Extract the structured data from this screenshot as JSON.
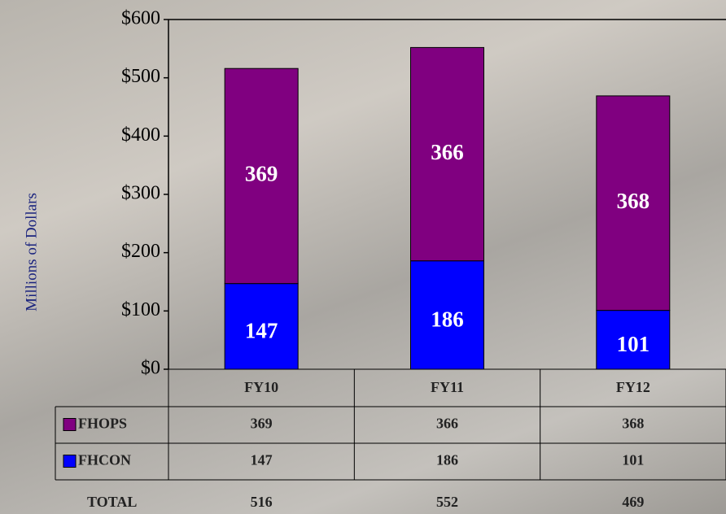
{
  "chart_data": {
    "type": "bar",
    "stacked": true,
    "y_label": "Millions of Dollars",
    "categories": [
      "FY10",
      "FY11",
      "FY12"
    ],
    "series": [
      {
        "name": "FHOPS",
        "color": "#800080",
        "values": [
          369,
          366,
          368
        ]
      },
      {
        "name": "FHCON",
        "color": "#0000ff",
        "values": [
          147,
          186,
          101
        ]
      }
    ],
    "totals": {
      "label": "TOTAL",
      "values": [
        516,
        552,
        469
      ]
    },
    "ylim": [
      0,
      600
    ],
    "yticks": [
      {
        "value": 0,
        "label": "$0"
      },
      {
        "value": 100,
        "label": "$100"
      },
      {
        "value": 200,
        "label": "$200"
      },
      {
        "value": 300,
        "label": "$300"
      },
      {
        "value": 400,
        "label": "$400"
      },
      {
        "value": 500,
        "label": "$500"
      },
      {
        "value": 600,
        "label": "$600"
      }
    ]
  }
}
